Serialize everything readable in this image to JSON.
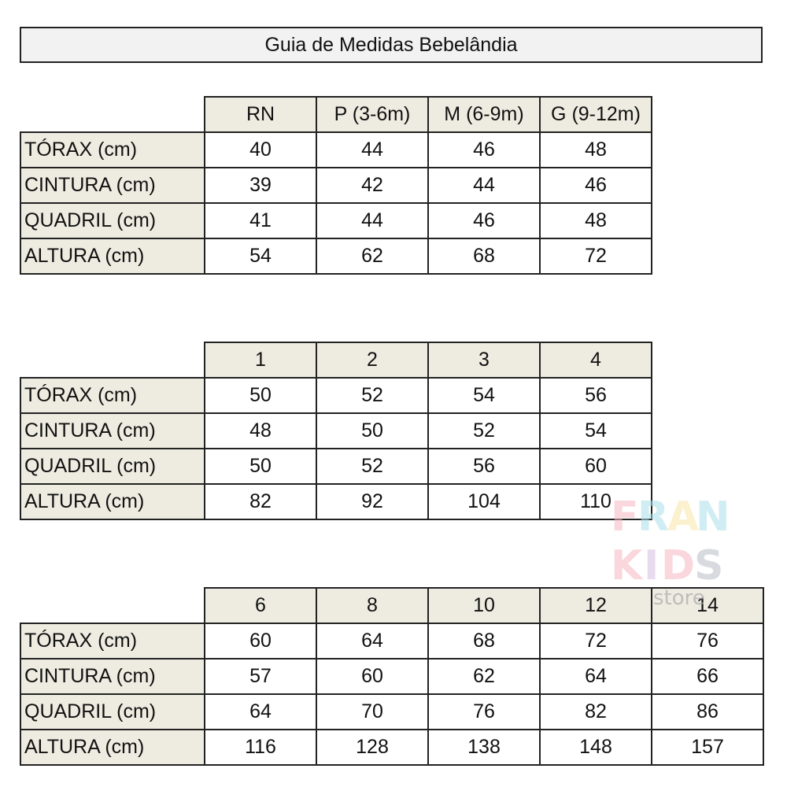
{
  "title": "Guia de Medidas Bebelândia",
  "tables": [
    {
      "headers": [
        "RN",
        "P (3-6m)",
        "M (6-9m)",
        "G (9-12m)"
      ],
      "rows": [
        {
          "label": "TÓRAX (cm)",
          "values": [
            "40",
            "44",
            "46",
            "48"
          ]
        },
        {
          "label": "CINTURA (cm)",
          "values": [
            "39",
            "42",
            "44",
            "46"
          ]
        },
        {
          "label": "QUADRIL (cm)",
          "values": [
            "41",
            "44",
            "46",
            "48"
          ]
        },
        {
          "label": "ALTURA (cm)",
          "values": [
            "54",
            "62",
            "68",
            "72"
          ]
        }
      ]
    },
    {
      "headers": [
        "1",
        "2",
        "3",
        "4"
      ],
      "rows": [
        {
          "label": "TÓRAX (cm)",
          "values": [
            "50",
            "52",
            "54",
            "56"
          ]
        },
        {
          "label": "CINTURA (cm)",
          "values": [
            "48",
            "50",
            "52",
            "54"
          ]
        },
        {
          "label": "QUADRIL (cm)",
          "values": [
            "50",
            "52",
            "56",
            "60"
          ]
        },
        {
          "label": "ALTURA (cm)",
          "values": [
            "82",
            "92",
            "104",
            "110"
          ]
        }
      ]
    },
    {
      "headers": [
        "6",
        "8",
        "10",
        "12",
        "14"
      ],
      "rows": [
        {
          "label": "TÓRAX (cm)",
          "values": [
            "60",
            "64",
            "68",
            "72",
            "76"
          ]
        },
        {
          "label": "CINTURA (cm)",
          "values": [
            "57",
            "60",
            "62",
            "64",
            "66"
          ]
        },
        {
          "label": "QUADRIL (cm)",
          "values": [
            "64",
            "70",
            "76",
            "82",
            "86"
          ]
        },
        {
          "label": "ALTURA (cm)",
          "values": [
            "116",
            "128",
            "138",
            "148",
            "157"
          ]
        }
      ]
    }
  ],
  "watermark": {
    "line1": "FRAN",
    "line2": "KIDS",
    "line3": "store"
  },
  "colors": {
    "header_bg": "#eeece1",
    "title_bg": "#f2f2f2",
    "border": "#222222"
  }
}
